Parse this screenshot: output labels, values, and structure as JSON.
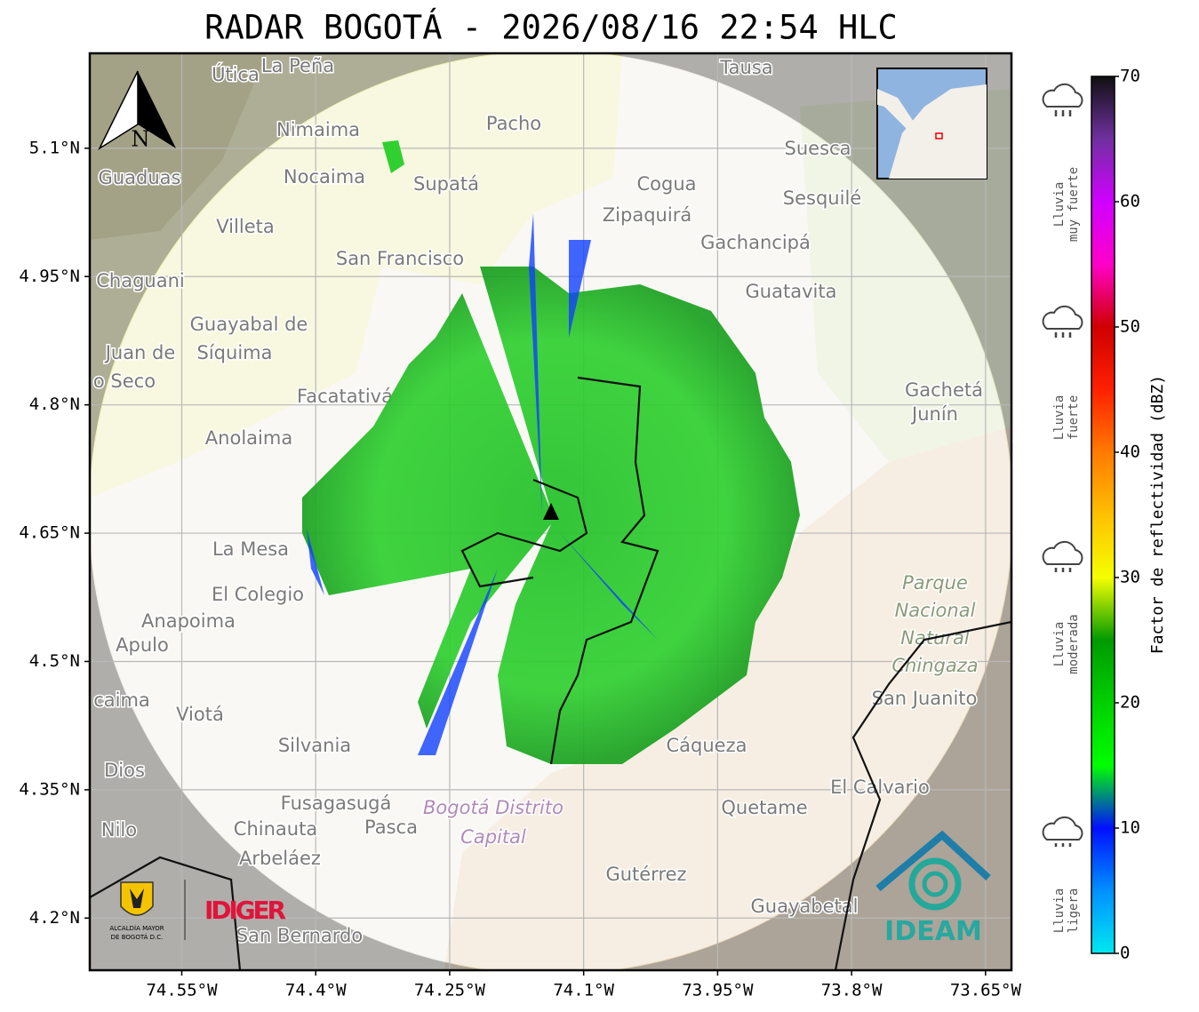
{
  "title": "RADAR BOGOTÁ - 2026/08/16 22:54 HLC",
  "map": {
    "lon_range": [
      -74.653,
      -73.621
    ],
    "lat_range": [
      4.139,
      5.211
    ],
    "lon_ticks": [
      {
        "value": -74.55,
        "label": "74.55°W"
      },
      {
        "value": -74.4,
        "label": "74.4°W"
      },
      {
        "value": -74.25,
        "label": "74.25°W"
      },
      {
        "value": -74.1,
        "label": "74.1°W"
      },
      {
        "value": -73.95,
        "label": "73.95°W"
      },
      {
        "value": -73.8,
        "label": "73.8°W"
      },
      {
        "value": -73.65,
        "label": "73.65°W"
      }
    ],
    "lat_ticks": [
      {
        "value": 5.1,
        "label": "5.1°N"
      },
      {
        "value": 4.95,
        "label": "4.95°N"
      },
      {
        "value": 4.8,
        "label": "4.8°N"
      },
      {
        "value": 4.65,
        "label": "4.65°N"
      },
      {
        "value": 4.5,
        "label": "4.5°N"
      },
      {
        "value": 4.35,
        "label": "4.35°N"
      },
      {
        "value": 4.2,
        "label": "4.2°N"
      }
    ],
    "grid": true,
    "compass": "N",
    "places": [
      "Útica",
      "La Peña",
      "Tausa",
      "Pacho",
      "Nimaima",
      "Guaduas",
      "Nocaima",
      "Supatá",
      "Cogua",
      "Suesca",
      "Sesquilé",
      "Zipaquirá",
      "Villeta",
      "Gachancipá",
      "San Francisco",
      "Chaguani",
      "Guatavita",
      "Guayabal de",
      "Síquima",
      "Juan de",
      "o Seco",
      "Facatativá",
      "Gachetá",
      "Junín",
      "Anolaima",
      "La Mesa",
      "El Colegio",
      "Anapoima",
      "Apulo",
      "caima",
      "Viotá",
      "Silvania",
      "Cáqueza",
      "Dios",
      "El Calvario",
      "San Juanito",
      "Fusagasugá",
      "Quetame",
      "Nilo",
      "Chinauta",
      "Pasca",
      "Arbeláez",
      "Gutérrez",
      "Guayabetal",
      "San Bernardo"
    ],
    "protected_area": [
      "Parque",
      "Nacional",
      "Natural",
      "Chingaza"
    ],
    "district": [
      "Bogotá Distrito",
      "Capital"
    ]
  },
  "colorbar": {
    "label": "Factor de reflectividad (dBZ)",
    "range": [
      0,
      70
    ],
    "ticks": [
      0,
      10,
      20,
      30,
      40,
      50,
      60,
      70
    ],
    "colors": [
      "#00e8f0",
      "#0090ff",
      "#0010ff",
      "#00ff00",
      "#00d000",
      "#009a00",
      "#f5ff00",
      "#ffc000",
      "#ff7a00",
      "#ff2000",
      "#d00000",
      "#ff00c8",
      "#d000ff",
      "#7030a0",
      "#101010"
    ]
  },
  "legend": [
    [
      "Lluvia",
      "muy fuerte"
    ],
    [
      "Lluvia",
      "fuerte"
    ],
    [
      "Lluvia",
      "moderada"
    ],
    [
      "Lluvia",
      "ligera"
    ]
  ],
  "logos": {
    "alcaldia": [
      "ALCALDÍA MAYOR",
      "DE BOGOTÁ D.C."
    ],
    "idiger": "IDIGER",
    "ideam": "IDEAM"
  }
}
